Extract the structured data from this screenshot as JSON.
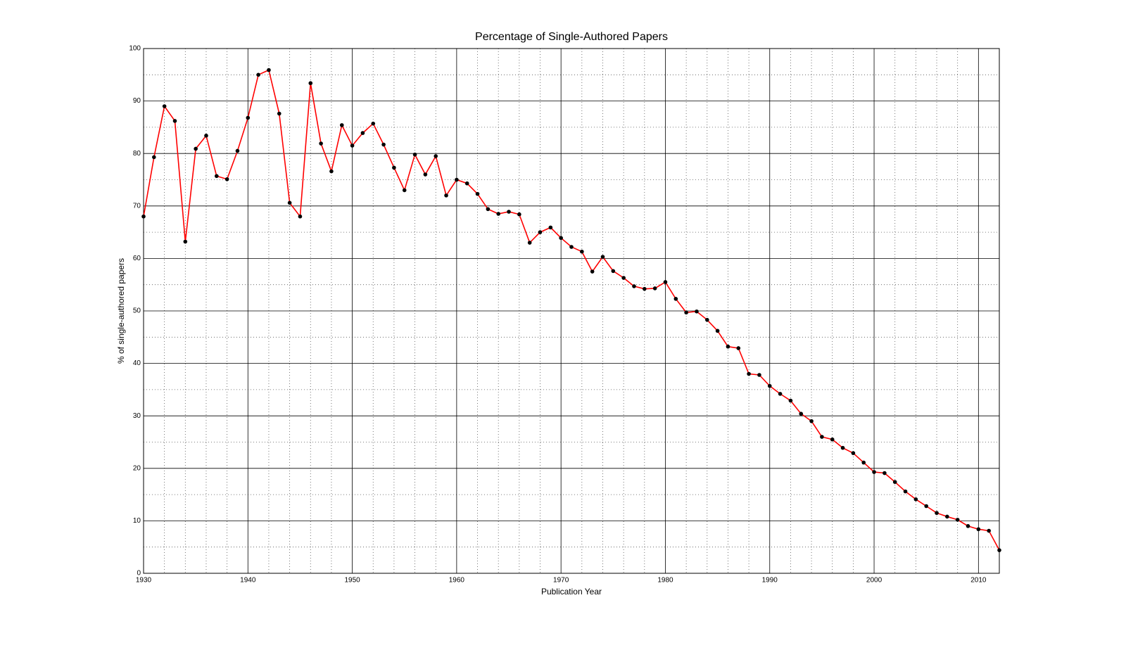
{
  "chart_data": {
    "type": "line",
    "title": "Percentage of Single-Authored Papers",
    "x_label": "Publication Year",
    "y_label": "% of single-authored papers",
    "x": [
      1930,
      1931,
      1932,
      1933,
      1934,
      1935,
      1936,
      1937,
      1938,
      1939,
      1940,
      1941,
      1942,
      1943,
      1944,
      1945,
      1946,
      1947,
      1948,
      1949,
      1950,
      1951,
      1952,
      1953,
      1954,
      1955,
      1956,
      1957,
      1958,
      1959,
      1960,
      1961,
      1962,
      1963,
      1964,
      1965,
      1966,
      1967,
      1968,
      1969,
      1970,
      1971,
      1972,
      1973,
      1974,
      1975,
      1976,
      1977,
      1978,
      1979,
      1980,
      1981,
      1982,
      1983,
      1984,
      1985,
      1986,
      1987,
      1988,
      1989,
      1990,
      1991,
      1992,
      1993,
      1994,
      1995,
      1996,
      1997,
      1998,
      1999,
      2000,
      2001,
      2002,
      2003,
      2004,
      2005,
      2006,
      2007,
      2008,
      2009,
      2010,
      2011,
      2012
    ],
    "series": [
      {
        "color": "#ff0000",
        "marker_color": "#000000",
        "values": [
          68,
          79.3,
          89,
          86.2,
          63.2,
          80.9,
          83.4,
          75.7,
          75.1,
          80.5,
          86.8,
          95,
          95.9,
          87.6,
          70.6,
          68,
          93.4,
          81.9,
          76.6,
          85.4,
          81.5,
          83.9,
          85.7,
          81.7,
          77.3,
          73,
          79.8,
          76,
          79.5,
          72,
          75,
          74.3,
          72.3,
          69.4,
          68.5,
          68.9,
          68.4,
          63,
          65,
          65.9,
          63.9,
          62.2,
          61.3,
          57.5,
          60.3,
          57.6,
          56.3,
          54.7,
          54.2,
          54.3,
          55.5,
          52.3,
          49.7,
          49.9,
          48.3,
          46.2,
          43.2,
          42.9,
          38,
          37.8,
          35.7,
          34.2,
          32.9,
          30.4,
          29,
          26,
          25.5,
          23.9,
          22.9,
          21.1,
          19.3,
          19.1,
          17.4,
          15.6,
          14.1,
          12.8,
          11.5,
          10.8,
          10.2,
          9,
          8.4,
          8.1,
          4.4
        ]
      }
    ],
    "xlim": [
      1930,
      2012
    ],
    "ylim": [
      0,
      100
    ],
    "xticks": [
      1930,
      1940,
      1950,
      1960,
      1970,
      1980,
      1990,
      2000,
      2010
    ],
    "yticks": [
      0,
      10,
      20,
      30,
      40,
      50,
      60,
      70,
      80,
      90,
      100
    ],
    "x_minor_ticks": [
      1932,
      1934,
      1936,
      1938,
      1942,
      1944,
      1946,
      1948,
      1952,
      1954,
      1956,
      1958,
      1962,
      1964,
      1966,
      1968,
      1972,
      1974,
      1976,
      1978,
      1982,
      1984,
      1986,
      1988,
      1992,
      1994,
      1996,
      1998,
      2002,
      2004,
      2006,
      2008
    ],
    "y_minor_ticks": [
      5,
      15,
      25,
      35,
      45,
      55,
      65,
      75,
      85,
      95
    ],
    "grid": true
  }
}
